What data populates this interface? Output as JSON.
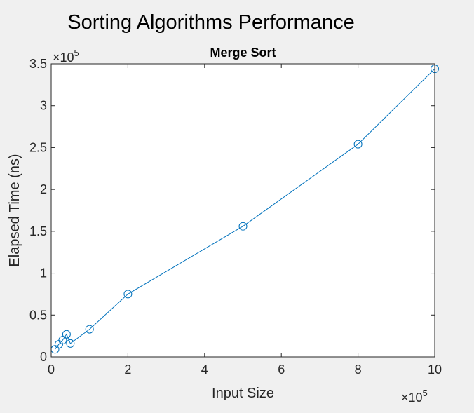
{
  "figure": {
    "title": "Sorting Algorithms Performance"
  },
  "chart_data": {
    "type": "line",
    "title": "Merge Sort",
    "xlabel": "Input Size",
    "ylabel": "Elapsed Time (ns)",
    "x_exponent": {
      "base": "×10",
      "power": "5"
    },
    "y_exponent": {
      "base": "×10",
      "power": "5"
    },
    "xlim": [
      0,
      10
    ],
    "ylim": [
      0,
      3.5
    ],
    "x_ticks": [
      0,
      2,
      4,
      6,
      8,
      10
    ],
    "x_tick_labels": [
      "0",
      "2",
      "4",
      "6",
      "8",
      "10"
    ],
    "y_ticks": [
      0,
      0.5,
      1,
      1.5,
      2,
      2.5,
      3,
      3.5
    ],
    "y_tick_labels": [
      "0",
      "0.5",
      "1",
      "1.5",
      "2",
      "2.5",
      "3",
      "3.5"
    ],
    "grid": false,
    "marker": "circle",
    "series": [
      {
        "x": [
          0.1,
          0.2,
          0.3,
          0.4,
          0.5,
          1,
          2,
          5,
          8,
          10
        ],
        "y": [
          0.09,
          0.15,
          0.2,
          0.27,
          0.16,
          0.33,
          0.75,
          1.56,
          2.54,
          3.44
        ],
        "color": "#0072bd"
      }
    ]
  }
}
